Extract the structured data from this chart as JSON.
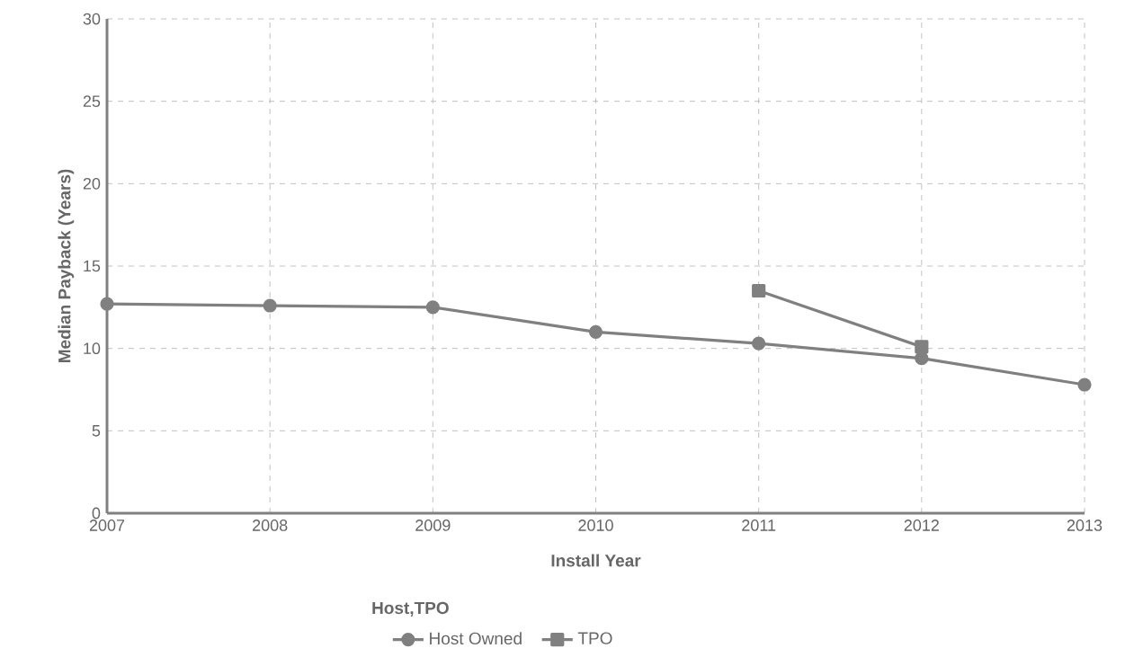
{
  "chart_data": {
    "type": "line",
    "xlabel": "Install Year",
    "ylabel": "Median Payback (Years)",
    "legend_title": "Host,TPO",
    "x": [
      2007,
      2008,
      2009,
      2010,
      2011,
      2012,
      2013
    ],
    "series": [
      {
        "name": "Host Owned",
        "color": "#808080",
        "marker": "circle",
        "values": [
          12.7,
          12.6,
          12.5,
          11.0,
          10.3,
          9.4,
          7.8
        ]
      },
      {
        "name": "TPO",
        "color": "#808080",
        "marker": "square",
        "x": [
          2011,
          2012
        ],
        "values": [
          13.5,
          10.1
        ]
      }
    ],
    "xlim": [
      2007,
      2013
    ],
    "xticks": [
      2007,
      2008,
      2009,
      2010,
      2011,
      2012,
      2013
    ],
    "ylim": [
      0,
      30
    ],
    "yticks": [
      0,
      5,
      10,
      15,
      20,
      25,
      30
    ],
    "grid": true,
    "legend": "bottom",
    "line_style": "solid"
  }
}
